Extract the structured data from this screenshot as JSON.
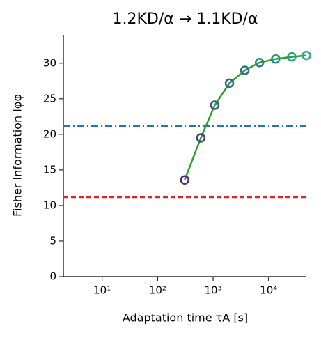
{
  "chart_data": {
    "type": "line",
    "title": "1.2KD/α → 1.1KD/α",
    "x_label": "Adaptation time τA [s]",
    "y_label": "Fisher Information Iφφ",
    "x_scale": "log",
    "xlim": [
      2,
      48000
    ],
    "ylim": [
      0,
      34
    ],
    "xticks": [
      {
        "value": 10,
        "label": "10¹"
      },
      {
        "value": 100,
        "label": "10²"
      },
      {
        "value": 1000,
        "label": "10³"
      },
      {
        "value": 10000,
        "label": "10⁴"
      }
    ],
    "yticks": [
      0,
      5,
      10,
      15,
      20,
      25,
      30
    ],
    "x": [
      308,
      600,
      1070,
      1970,
      3730,
      6870,
      13400,
      26100,
      48100
    ],
    "series": [
      {
        "color": "#2ca02c",
        "values": [
          13.6,
          19.5,
          24.1,
          27.2,
          29.0,
          30.1,
          30.6,
          30.9,
          31.1
        ],
        "marker_colors": [
          "#472d7b",
          "#433e85",
          "#3b528b",
          "#33638d",
          "#2c728e",
          "#26828e",
          "#21918c",
          "#1fa088",
          "#28ae80"
        ]
      }
    ],
    "hlines": [
      {
        "value": 21.2,
        "color": "#1f77b4",
        "dash": "10 4 2 4"
      },
      {
        "value": 11.2,
        "color": "#d62728",
        "dash": "7 4"
      }
    ]
  }
}
